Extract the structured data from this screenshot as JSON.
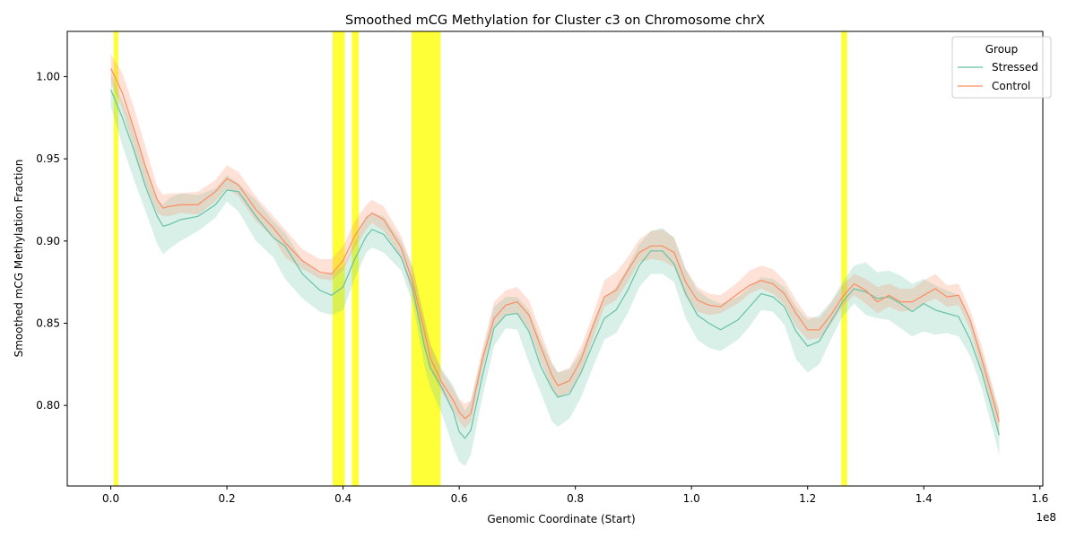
{
  "chart_data": {
    "type": "line",
    "title": "Smoothed mCG Methylation for Cluster c3 on Chromosome chrX",
    "xlabel": "Genomic Coordinate (Start)",
    "ylabel": "Smoothed mCG Methylation Fraction",
    "x_offset_label": "1e8",
    "xlim": [
      -7500000,
      160500000
    ],
    "ylim": [
      0.751,
      1.0275
    ],
    "x_ticks": [
      0,
      20000000,
      40000000,
      60000000,
      80000000,
      100000000,
      120000000,
      140000000,
      160000000
    ],
    "x_tick_labels": [
      "0.0",
      "0.2",
      "0.4",
      "0.6",
      "0.8",
      "1.0",
      "1.2",
      "1.4",
      "1.6"
    ],
    "y_ticks": [
      0.8,
      0.85,
      0.9,
      0.95,
      1.0
    ],
    "y_tick_labels": [
      "0.80",
      "0.85",
      "0.90",
      "0.95",
      "1.00"
    ],
    "grid": false,
    "legend": {
      "title": "Group",
      "placement": "top-right"
    },
    "highlight_color": "#ffff00",
    "highlight_regions": [
      [
        500000,
        1300000
      ],
      [
        38200000,
        40300000
      ],
      [
        41500000,
        42700000
      ],
      [
        51800000,
        56800000
      ],
      [
        125800000,
        126800000
      ]
    ],
    "series": [
      {
        "name": "Stressed",
        "color": "#66c2a5",
        "x": [
          0,
          2000000,
          4000000,
          6000000,
          8000000,
          9000000,
          10000000,
          12000000,
          15000000,
          18000000,
          20000000,
          22000000,
          25000000,
          28000000,
          30000000,
          33000000,
          36000000,
          38000000,
          40000000,
          42000000,
          44000000,
          45000000,
          47000000,
          50000000,
          52000000,
          54000000,
          55000000,
          57000000,
          59000000,
          60000000,
          61000000,
          62000000,
          64000000,
          66000000,
          68000000,
          70000000,
          72000000,
          74000000,
          76000000,
          77000000,
          79000000,
          81000000,
          83000000,
          85000000,
          87000000,
          89000000,
          91000000,
          93000000,
          95000000,
          97000000,
          99000000,
          101000000,
          103000000,
          105000000,
          108000000,
          110000000,
          112000000,
          114000000,
          116000000,
          118000000,
          120000000,
          122000000,
          124000000,
          126000000,
          128000000,
          130000000,
          132000000,
          134000000,
          136000000,
          138000000,
          140000000,
          142000000,
          144000000,
          146000000,
          148000000,
          150000000,
          153000000
        ],
        "values": [
          0.992,
          0.975,
          0.955,
          0.933,
          0.915,
          0.909,
          0.91,
          0.913,
          0.915,
          0.922,
          0.931,
          0.93,
          0.915,
          0.902,
          0.897,
          0.88,
          0.87,
          0.867,
          0.872,
          0.889,
          0.903,
          0.907,
          0.904,
          0.89,
          0.871,
          0.836,
          0.823,
          0.811,
          0.796,
          0.784,
          0.78,
          0.785,
          0.818,
          0.847,
          0.855,
          0.856,
          0.845,
          0.824,
          0.81,
          0.805,
          0.807,
          0.82,
          0.837,
          0.853,
          0.858,
          0.87,
          0.885,
          0.894,
          0.894,
          0.886,
          0.868,
          0.855,
          0.85,
          0.846,
          0.852,
          0.86,
          0.868,
          0.866,
          0.86,
          0.845,
          0.836,
          0.839,
          0.851,
          0.863,
          0.871,
          0.869,
          0.865,
          0.866,
          0.862,
          0.857,
          0.862,
          0.858,
          0.856,
          0.854,
          0.84,
          0.82,
          0.782
        ],
        "lower": [
          0.982,
          0.958,
          0.937,
          0.918,
          0.898,
          0.892,
          0.895,
          0.9,
          0.906,
          0.914,
          0.924,
          0.918,
          0.9,
          0.89,
          0.877,
          0.865,
          0.857,
          0.855,
          0.858,
          0.877,
          0.893,
          0.896,
          0.893,
          0.882,
          0.862,
          0.824,
          0.811,
          0.795,
          0.774,
          0.766,
          0.763,
          0.77,
          0.805,
          0.836,
          0.847,
          0.846,
          0.826,
          0.808,
          0.79,
          0.787,
          0.792,
          0.805,
          0.823,
          0.84,
          0.844,
          0.856,
          0.872,
          0.88,
          0.88,
          0.875,
          0.853,
          0.84,
          0.835,
          0.833,
          0.84,
          0.848,
          0.858,
          0.857,
          0.849,
          0.828,
          0.82,
          0.825,
          0.84,
          0.854,
          0.862,
          0.855,
          0.853,
          0.852,
          0.847,
          0.842,
          0.845,
          0.843,
          0.844,
          0.842,
          0.83,
          0.81,
          0.77
        ],
        "upper": [
          1.003,
          0.985,
          0.968,
          0.946,
          0.925,
          0.922,
          0.926,
          0.929,
          0.928,
          0.932,
          0.94,
          0.935,
          0.925,
          0.912,
          0.905,
          0.888,
          0.88,
          0.88,
          0.885,
          0.9,
          0.915,
          0.917,
          0.915,
          0.9,
          0.884,
          0.853,
          0.837,
          0.822,
          0.812,
          0.803,
          0.797,
          0.803,
          0.831,
          0.86,
          0.866,
          0.866,
          0.858,
          0.84,
          0.825,
          0.82,
          0.822,
          0.832,
          0.85,
          0.865,
          0.872,
          0.884,
          0.898,
          0.906,
          0.908,
          0.902,
          0.883,
          0.87,
          0.865,
          0.862,
          0.866,
          0.872,
          0.878,
          0.877,
          0.872,
          0.86,
          0.852,
          0.855,
          0.863,
          0.875,
          0.885,
          0.887,
          0.881,
          0.882,
          0.879,
          0.874,
          0.877,
          0.873,
          0.87,
          0.867,
          0.852,
          0.832,
          0.796
        ]
      },
      {
        "name": "Control",
        "color": "#fc8d62",
        "x": [
          0,
          2000000,
          4000000,
          6000000,
          8000000,
          9000000,
          10000000,
          12000000,
          15000000,
          18000000,
          20000000,
          22000000,
          25000000,
          28000000,
          30000000,
          33000000,
          36000000,
          38000000,
          40000000,
          42000000,
          44000000,
          45000000,
          47000000,
          50000000,
          52000000,
          54000000,
          55000000,
          57000000,
          59000000,
          60000000,
          61000000,
          62000000,
          64000000,
          66000000,
          68000000,
          70000000,
          72000000,
          74000000,
          76000000,
          77000000,
          79000000,
          81000000,
          83000000,
          85000000,
          87000000,
          89000000,
          91000000,
          93000000,
          95000000,
          97000000,
          99000000,
          101000000,
          103000000,
          105000000,
          108000000,
          110000000,
          112000000,
          114000000,
          116000000,
          118000000,
          120000000,
          122000000,
          124000000,
          126000000,
          128000000,
          130000000,
          132000000,
          134000000,
          136000000,
          138000000,
          140000000,
          142000000,
          144000000,
          146000000,
          148000000,
          150000000,
          153000000
        ],
        "values": [
          1.005,
          0.99,
          0.968,
          0.945,
          0.925,
          0.92,
          0.921,
          0.922,
          0.922,
          0.93,
          0.938,
          0.934,
          0.919,
          0.908,
          0.899,
          0.888,
          0.881,
          0.88,
          0.888,
          0.903,
          0.914,
          0.917,
          0.913,
          0.896,
          0.875,
          0.845,
          0.829,
          0.814,
          0.803,
          0.796,
          0.792,
          0.795,
          0.828,
          0.853,
          0.861,
          0.863,
          0.855,
          0.836,
          0.818,
          0.812,
          0.815,
          0.828,
          0.848,
          0.866,
          0.87,
          0.882,
          0.893,
          0.897,
          0.897,
          0.893,
          0.875,
          0.864,
          0.861,
          0.86,
          0.868,
          0.873,
          0.876,
          0.874,
          0.868,
          0.856,
          0.846,
          0.846,
          0.855,
          0.866,
          0.874,
          0.87,
          0.863,
          0.867,
          0.863,
          0.863,
          0.867,
          0.871,
          0.866,
          0.867,
          0.852,
          0.828,
          0.79
        ],
        "lower": [
          0.997,
          0.98,
          0.956,
          0.934,
          0.917,
          0.915,
          0.915,
          0.917,
          0.916,
          0.924,
          0.932,
          0.927,
          0.912,
          0.902,
          0.89,
          0.883,
          0.877,
          0.876,
          0.882,
          0.896,
          0.907,
          0.911,
          0.906,
          0.89,
          0.866,
          0.838,
          0.822,
          0.808,
          0.797,
          0.79,
          0.786,
          0.79,
          0.822,
          0.847,
          0.855,
          0.856,
          0.846,
          0.827,
          0.81,
          0.805,
          0.808,
          0.82,
          0.84,
          0.86,
          0.864,
          0.875,
          0.887,
          0.889,
          0.888,
          0.884,
          0.866,
          0.857,
          0.855,
          0.856,
          0.862,
          0.868,
          0.871,
          0.868,
          0.861,
          0.848,
          0.84,
          0.841,
          0.849,
          0.86,
          0.867,
          0.862,
          0.856,
          0.86,
          0.857,
          0.858,
          0.862,
          0.865,
          0.86,
          0.861,
          0.846,
          0.82,
          0.78
        ],
        "upper": [
          1.014,
          1.002,
          0.981,
          0.957,
          0.933,
          0.928,
          0.929,
          0.929,
          0.93,
          0.937,
          0.946,
          0.942,
          0.927,
          0.915,
          0.907,
          0.895,
          0.889,
          0.889,
          0.897,
          0.912,
          0.922,
          0.925,
          0.921,
          0.903,
          0.884,
          0.853,
          0.838,
          0.821,
          0.81,
          0.804,
          0.801,
          0.803,
          0.835,
          0.863,
          0.87,
          0.872,
          0.864,
          0.845,
          0.826,
          0.82,
          0.823,
          0.836,
          0.855,
          0.876,
          0.881,
          0.89,
          0.901,
          0.906,
          0.907,
          0.902,
          0.883,
          0.872,
          0.868,
          0.867,
          0.875,
          0.882,
          0.885,
          0.883,
          0.876,
          0.864,
          0.854,
          0.853,
          0.862,
          0.873,
          0.88,
          0.877,
          0.872,
          0.874,
          0.871,
          0.871,
          0.876,
          0.88,
          0.873,
          0.874,
          0.858,
          0.836,
          0.797
        ]
      }
    ]
  }
}
